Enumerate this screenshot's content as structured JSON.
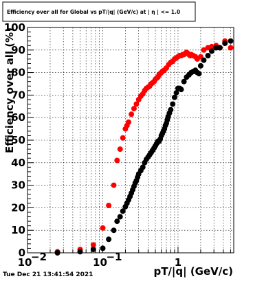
{
  "timestamp": "Tue Dec 21 13:41:54 2021",
  "chart_data": {
    "type": "scatter",
    "title": "Efficiency over all for Global vs pT/|q| (GeV/c) at | η | <= 1.0",
    "xlabel": "pT/|q| (GeV/c)",
    "ylabel": "Efficiency over all (%)",
    "x_scale": "log",
    "xlim": [
      0.01,
      5.5
    ],
    "ylim": [
      0,
      100
    ],
    "x_ticks": [
      {
        "value": 0.01,
        "label": "10",
        "exp": "−2"
      },
      {
        "value": 0.1,
        "label": "10",
        "exp": "−1"
      },
      {
        "value": 1,
        "label": "1",
        "exp": ""
      }
    ],
    "y_ticks": [
      0,
      10,
      20,
      30,
      40,
      50,
      60,
      70,
      80,
      90,
      100
    ],
    "grid": true,
    "series": [
      {
        "color": "#ff0000",
        "x": [
          0.025,
          0.05,
          0.075,
          0.1,
          0.12,
          0.14,
          0.155,
          0.17,
          0.185,
          0.2,
          0.21,
          0.22,
          0.24,
          0.26,
          0.28,
          0.3,
          0.32,
          0.34,
          0.36,
          0.38,
          0.4,
          0.42,
          0.44,
          0.46,
          0.48,
          0.5,
          0.52,
          0.54,
          0.56,
          0.58,
          0.6,
          0.62,
          0.65,
          0.7,
          0.75,
          0.8,
          0.85,
          0.9,
          0.95,
          1.0,
          1.05,
          1.1,
          1.15,
          1.2,
          1.25,
          1.3,
          1.35,
          1.4,
          1.45,
          1.5,
          1.6,
          1.7,
          1.8,
          2.0,
          2.2,
          2.5,
          2.8,
          3.2,
          3.6,
          4.2,
          5.0
        ],
        "y": [
          0.5,
          1.5,
          3.5,
          11,
          21,
          30,
          41,
          46,
          51,
          55,
          56.5,
          58,
          61.5,
          64,
          66,
          68,
          69.5,
          70.5,
          72,
          73,
          73.5,
          74,
          75,
          75.5,
          76,
          77,
          77.5,
          78,
          79,
          79.5,
          80,
          80.5,
          81,
          82,
          83.5,
          84.5,
          85,
          86,
          86.5,
          87,
          87.5,
          87.5,
          88,
          88,
          88.5,
          89,
          88.5,
          88,
          87.5,
          88,
          87.5,
          87,
          86,
          87,
          90,
          91,
          91.5,
          92,
          91,
          94,
          91
        ]
      },
      {
        "color": "#000000",
        "x": [
          0.025,
          0.05,
          0.075,
          0.1,
          0.12,
          0.14,
          0.155,
          0.17,
          0.185,
          0.2,
          0.21,
          0.22,
          0.23,
          0.24,
          0.25,
          0.26,
          0.27,
          0.28,
          0.29,
          0.3,
          0.32,
          0.34,
          0.36,
          0.38,
          0.4,
          0.42,
          0.44,
          0.46,
          0.48,
          0.5,
          0.52,
          0.54,
          0.56,
          0.58,
          0.6,
          0.62,
          0.64,
          0.66,
          0.68,
          0.7,
          0.72,
          0.74,
          0.77,
          0.8,
          0.85,
          0.9,
          0.95,
          1.0,
          1.05,
          1.1,
          1.2,
          1.3,
          1.4,
          1.5,
          1.6,
          1.7,
          1.8,
          1.9,
          2.0,
          2.2,
          2.5,
          2.8,
          3.2,
          3.6,
          4.2,
          5.0
        ],
        "y": [
          0,
          0.5,
          1.5,
          2,
          6,
          10,
          14,
          16,
          18.5,
          20.5,
          22,
          23.5,
          25,
          26.5,
          28,
          29.5,
          31,
          32,
          33.5,
          35,
          36.5,
          38,
          40,
          41.5,
          42.5,
          43.5,
          44.5,
          45.5,
          46.5,
          47.5,
          48.5,
          49.5,
          49.5,
          50.5,
          52,
          53,
          54,
          55,
          56.5,
          57.5,
          59,
          60.5,
          62,
          63.5,
          66,
          69,
          71,
          73,
          73,
          72.5,
          76,
          78,
          79,
          80,
          80.5,
          81,
          80,
          79.5,
          83,
          85.5,
          87.5,
          89.5,
          91,
          91,
          93,
          94
        ]
      }
    ]
  }
}
